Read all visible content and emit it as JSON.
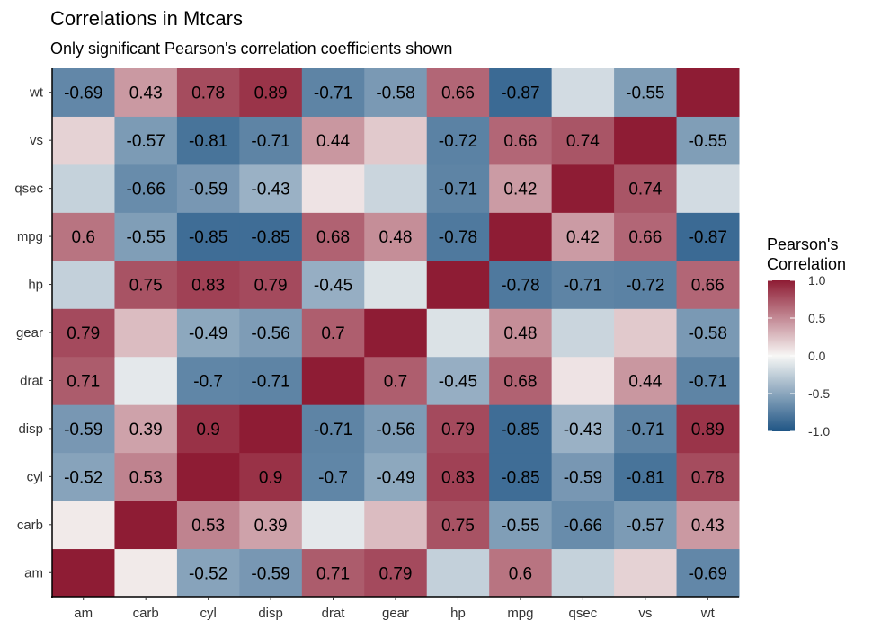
{
  "chart_data": {
    "type": "heatmap",
    "title": "Correlations in Mtcars",
    "subtitle": "Only significant Pearson's correlation coefficients shown",
    "x_categories": [
      "am",
      "carb",
      "cyl",
      "disp",
      "drat",
      "gear",
      "hp",
      "mpg",
      "qsec",
      "vs",
      "wt"
    ],
    "y_categories": [
      "am",
      "carb",
      "cyl",
      "disp",
      "drat",
      "gear",
      "hp",
      "mpg",
      "qsec",
      "vs",
      "wt"
    ],
    "values": [
      [
        1.0,
        0.06,
        -0.52,
        -0.59,
        0.71,
        0.79,
        -0.24,
        0.6,
        -0.23,
        0.17,
        -0.69
      ],
      [
        0.06,
        1.0,
        0.53,
        0.39,
        -0.09,
        0.27,
        0.75,
        -0.55,
        -0.66,
        -0.57,
        0.43
      ],
      [
        -0.52,
        0.53,
        1.0,
        0.9,
        -0.7,
        -0.49,
        0.83,
        -0.85,
        -0.59,
        -0.81,
        0.78
      ],
      [
        -0.59,
        0.39,
        0.9,
        1.0,
        -0.71,
        -0.56,
        0.79,
        -0.85,
        -0.43,
        -0.71,
        0.89
      ],
      [
        0.71,
        -0.09,
        -0.7,
        -0.71,
        1.0,
        0.7,
        -0.45,
        0.68,
        0.09,
        0.44,
        -0.71
      ],
      [
        0.79,
        0.27,
        -0.49,
        -0.56,
        0.7,
        1.0,
        -0.13,
        0.48,
        -0.21,
        0.21,
        -0.58
      ],
      [
        -0.24,
        0.75,
        0.83,
        0.79,
        -0.45,
        -0.13,
        1.0,
        -0.78,
        -0.71,
        -0.72,
        0.66
      ],
      [
        0.6,
        -0.55,
        -0.85,
        -0.85,
        0.68,
        0.48,
        -0.78,
        1.0,
        0.42,
        0.66,
        -0.87
      ],
      [
        -0.23,
        -0.66,
        -0.59,
        -0.43,
        0.09,
        -0.21,
        -0.71,
        0.42,
        1.0,
        0.74,
        -0.17
      ],
      [
        0.17,
        -0.57,
        -0.81,
        -0.71,
        0.44,
        0.21,
        -0.72,
        0.66,
        0.74,
        1.0,
        -0.55
      ],
      [
        -0.69,
        0.43,
        0.78,
        0.89,
        -0.71,
        -0.58,
        0.66,
        -0.87,
        -0.17,
        -0.55,
        1.0
      ]
    ],
    "labels": [
      [
        "",
        "",
        "-0.52",
        "-0.59",
        "0.71",
        "0.79",
        "",
        "0.6",
        "",
        "",
        "-0.69"
      ],
      [
        "",
        "",
        "0.53",
        "0.39",
        "",
        "",
        "0.75",
        "-0.55",
        "-0.66",
        "-0.57",
        "0.43"
      ],
      [
        "-0.52",
        "0.53",
        "",
        "0.9",
        "-0.7",
        "-0.49",
        "0.83",
        "-0.85",
        "-0.59",
        "-0.81",
        "0.78"
      ],
      [
        "-0.59",
        "0.39",
        "0.9",
        "",
        "-0.71",
        "-0.56",
        "0.79",
        "-0.85",
        "-0.43",
        "-0.71",
        "0.89"
      ],
      [
        "0.71",
        "",
        "-0.7",
        "-0.71",
        "",
        "0.7",
        "-0.45",
        "0.68",
        "",
        "0.44",
        "-0.71"
      ],
      [
        "0.79",
        "",
        "-0.49",
        "-0.56",
        "0.7",
        "",
        "",
        "0.48",
        "",
        "",
        "-0.58"
      ],
      [
        "",
        "0.75",
        "0.83",
        "0.79",
        "-0.45",
        "",
        "",
        "-0.78",
        "-0.71",
        "-0.72",
        "0.66"
      ],
      [
        "0.6",
        "-0.55",
        "-0.85",
        "-0.85",
        "0.68",
        "0.48",
        "-0.78",
        "",
        "0.42",
        "0.66",
        "-0.87"
      ],
      [
        "",
        "-0.66",
        "-0.59",
        "-0.43",
        "",
        "",
        "-0.71",
        "0.42",
        "",
        "0.74",
        ""
      ],
      [
        "",
        "-0.57",
        "-0.81",
        "-0.71",
        "0.44",
        "",
        "-0.72",
        "0.66",
        "0.74",
        "",
        "-0.55"
      ],
      [
        "-0.69",
        "0.43",
        "0.78",
        "0.89",
        "-0.71",
        "-0.58",
        "0.66",
        "-0.87",
        "",
        "-0.55",
        ""
      ]
    ],
    "legend": {
      "title_lines": [
        "Pearson's",
        "Correlation"
      ],
      "ticks": [
        1.0,
        0.5,
        0.0,
        -0.5,
        -1.0
      ],
      "tick_labels": [
        "1.0",
        "0.5",
        "0.0",
        "-0.5",
        "-1.0"
      ],
      "placement": "right"
    },
    "color_scale": {
      "low": "#1f5585",
      "mid": "#f7f7f5",
      "high": "#8e1c34",
      "domain": [
        -1,
        0,
        1
      ]
    },
    "grid": false
  }
}
